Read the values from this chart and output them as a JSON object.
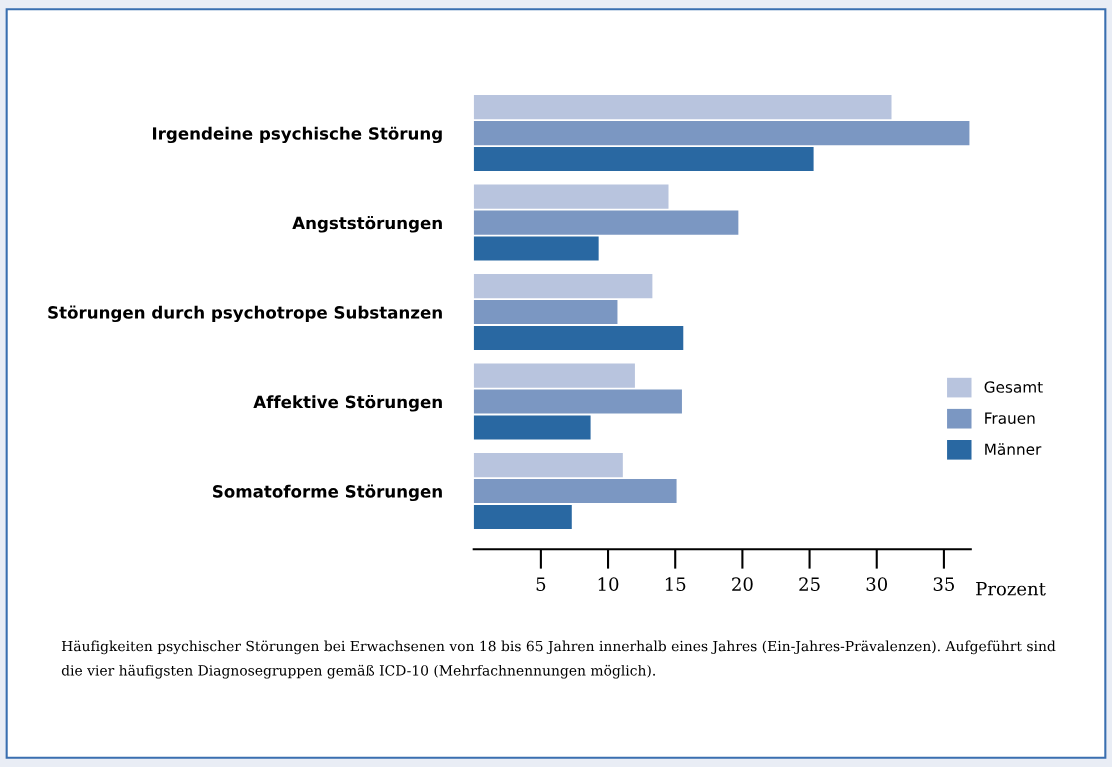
{
  "chart_data": {
    "type": "bar",
    "orientation": "horizontal",
    "xlabel": "Prozent",
    "categories": [
      "Irgendeine psychische Störung",
      "Angststörungen",
      "Störungen durch psychotrope Substanzen",
      "Affektive Störungen",
      "Somatoforme Störungen"
    ],
    "series": [
      {
        "name": "Gesamt",
        "color": "#b8c4de",
        "values": [
          31.1,
          14.5,
          13.3,
          12.0,
          11.1
        ]
      },
      {
        "name": "Frauen",
        "color": "#7b97c2",
        "values": [
          36.9,
          19.7,
          10.7,
          15.5,
          15.1
        ]
      },
      {
        "name": "Männer",
        "color": "#2968a2",
        "values": [
          25.3,
          9.3,
          15.6,
          8.7,
          7.3
        ]
      }
    ],
    "xlim": [
      0,
      37
    ],
    "xticks": [
      5,
      10,
      15,
      20,
      25,
      30,
      35
    ],
    "grid": false,
    "legend": "right",
    "annotations": [
      "Häufigkeiten psychischer Störungen bei Erwachsenen von 18 bis 65 Jahren innerhalb eines Jahres (Ein-Jahres-Prävalenzen). Aufgeführt sind die vier häufigsten Diagnosegruppen gemäß ICD-10 (Mehrfachnennungen möglich)."
    ]
  }
}
